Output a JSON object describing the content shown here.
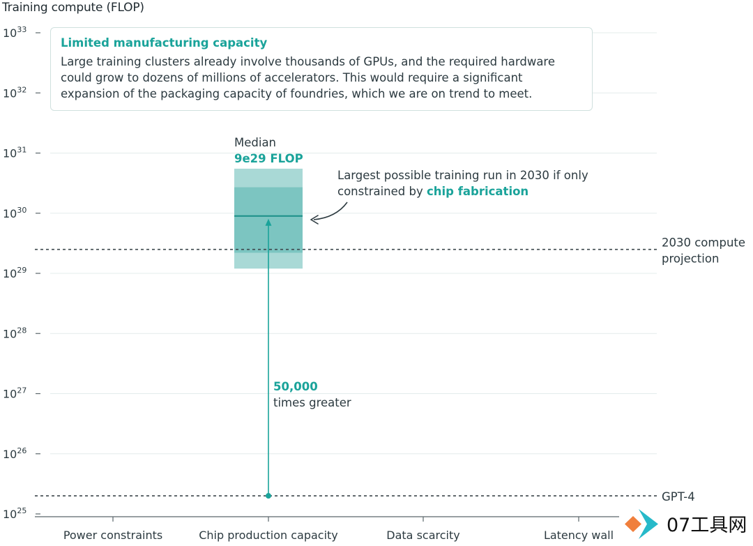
{
  "chart_data": {
    "type": "bar",
    "y_axis_title": "Training compute (FLOP)",
    "y_scale": "log",
    "ylim": [
      1e+25,
      1e+33
    ],
    "y_ticks": [
      {
        "base": "10",
        "exp": "33"
      },
      {
        "base": "10",
        "exp": "32"
      },
      {
        "base": "10",
        "exp": "31"
      },
      {
        "base": "10",
        "exp": "30"
      },
      {
        "base": "10",
        "exp": "29"
      },
      {
        "base": "10",
        "exp": "28"
      },
      {
        "base": "10",
        "exp": "27"
      },
      {
        "base": "10",
        "exp": "26"
      },
      {
        "base": "10",
        "exp": "25"
      }
    ],
    "y_tick_values": [
      1e+33,
      1e+32,
      1e+31,
      1e+30,
      1e+29,
      1e+28,
      1e+27,
      1e+26,
      1e+25
    ],
    "categories": [
      "Power constraints",
      "Chip production capacity",
      "Data scarcity",
      "Latency wall"
    ],
    "highlighted_category": "Chip production capacity",
    "range_bars": [
      {
        "category": "Chip production capacity",
        "median": 9e+29,
        "inner_range": [
          2.2e+29,
          2.7e+30
        ],
        "outer_range": [
          1.2e+29,
          5.5e+30
        ],
        "median_label": "Median",
        "median_value_label": "9e29 FLOP"
      }
    ],
    "reference_lines": [
      {
        "value": 2.5e+29,
        "label_lines": [
          "2030 compute",
          "projection"
        ]
      },
      {
        "value": 2e+25,
        "label_lines": [
          "GPT-4"
        ]
      }
    ],
    "ratio_annotation": {
      "from": 2e+25,
      "to": 9e+29,
      "value_label": "50,000",
      "text": "times greater"
    },
    "grid": true,
    "colors": {
      "outer_band": "#a9d9d6",
      "inner_band": "#7cc5c1",
      "median_line": "#1a8f88",
      "accent": "#1aa39a",
      "reference_line": "#3d474c",
      "grid": "#e3eceb"
    }
  },
  "callout": {
    "title": "Limited manufacturing capacity",
    "body": "Large training clusters already involve thousands of GPUs, and the required hardware could grow to dozens of millions of accelerators. This would require a significant expansion of the packaging capacity of foundries, which we are on trend to meet."
  },
  "annotation": {
    "text_before": "Largest possible training run in 2030 if only constrained by ",
    "highlight": "chip fabrication"
  },
  "watermark": {
    "text": "07工具网"
  }
}
